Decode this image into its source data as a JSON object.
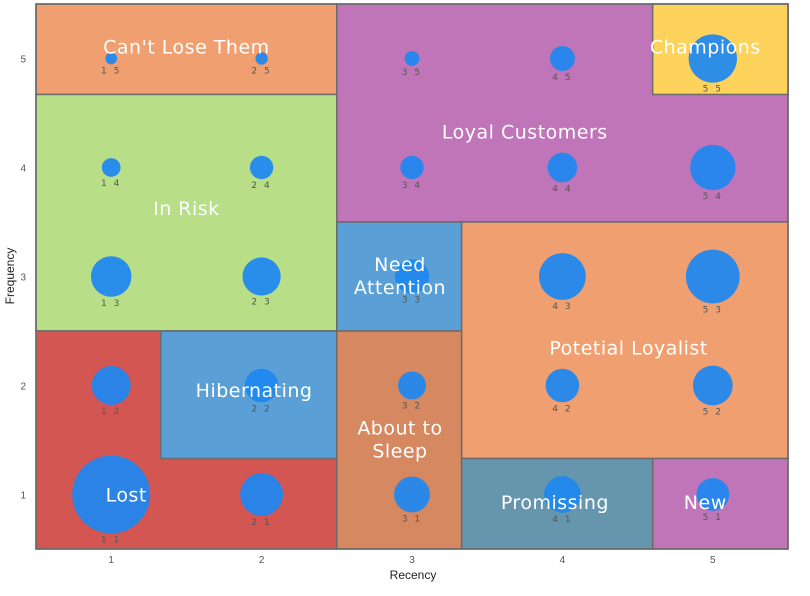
{
  "chart_data": {
    "type": "scatter",
    "title": "",
    "xlabel": "Recency",
    "ylabel": "Frequency",
    "xlim": [
      0.5,
      5.5
    ],
    "ylim": [
      0.5,
      5.5
    ],
    "x_ticks": [
      "1",
      "2",
      "3",
      "4",
      "5"
    ],
    "y_ticks": [
      "1",
      "2",
      "3",
      "4",
      "5"
    ],
    "grid": false,
    "bubble_color": "#1e88f0",
    "segments": [
      {
        "name": "Can't Lose Them",
        "x_range": [
          0.5,
          2.5
        ],
        "y_range": [
          4.67,
          5.5
        ],
        "color": "#f0a070",
        "label_at": [
          1.5,
          5.1
        ],
        "lines": [
          "Can't Lose Them"
        ]
      },
      {
        "name": "Loyal Customers",
        "x_range": [
          2.5,
          5.5
        ],
        "y_range": [
          3.5,
          5.5
        ],
        "color": "#c075b8",
        "label_at": [
          3.75,
          4.32
        ],
        "lines": [
          "Loyal Customers"
        ]
      },
      {
        "name": "Champions",
        "x_range": [
          4.6,
          5.5
        ],
        "y_range": [
          4.67,
          5.5
        ],
        "color": "#fdd35c",
        "label_at": [
          4.95,
          5.1
        ],
        "lines": [
          "Champions"
        ]
      },
      {
        "name": "In Risk",
        "x_range": [
          0.5,
          2.5
        ],
        "y_range": [
          2.5,
          4.67
        ],
        "color": "#b8df88",
        "label_at": [
          1.5,
          3.62
        ],
        "lines": [
          "In Risk"
        ]
      },
      {
        "name": "Need Attention",
        "x_range": [
          2.5,
          3.33
        ],
        "y_range": [
          2.5,
          3.5
        ],
        "color": "#5aa0d6",
        "label_at": [
          2.92,
          3.0
        ],
        "lines": [
          "Need",
          "Attention"
        ]
      },
      {
        "name": "Potetial Loyalist",
        "x_range": [
          3.33,
          5.5
        ],
        "y_range": [
          1.33,
          3.5
        ],
        "color": "#f0a070",
        "label_at": [
          4.44,
          2.34
        ],
        "lines": [
          "Potetial Loyalist"
        ]
      },
      {
        "name": "Lost",
        "x_range": [
          0.5,
          2.5
        ],
        "y_range": [
          0.5,
          2.5
        ],
        "color": "#d45652",
        "label_at": [
          1.1,
          0.99
        ],
        "lines": [
          "Lost"
        ]
      },
      {
        "name": "Hibernating",
        "x_range": [
          1.33,
          2.5
        ],
        "y_range": [
          1.33,
          2.5
        ],
        "color": "#5aa0d6",
        "label_at": [
          1.95,
          1.95
        ],
        "lines": [
          "Hibernating"
        ]
      },
      {
        "name": "About to Sleep",
        "x_range": [
          2.5,
          3.33
        ],
        "y_range": [
          0.5,
          2.5
        ],
        "color": "#d68860",
        "label_at": [
          2.92,
          1.5
        ],
        "lines": [
          "About to",
          "Sleep"
        ]
      },
      {
        "name": "Promissing",
        "x_range": [
          3.33,
          4.6
        ],
        "y_range": [
          0.5,
          1.33
        ],
        "color": "#6596ae",
        "label_at": [
          3.95,
          0.92
        ],
        "lines": [
          "Promissing"
        ]
      },
      {
        "name": "New",
        "x_range": [
          4.6,
          5.5
        ],
        "y_range": [
          0.5,
          1.33
        ],
        "color": "#c075b8",
        "label_at": [
          4.95,
          0.92
        ],
        "lines": [
          "New"
        ]
      }
    ],
    "points": [
      {
        "x": 1,
        "y": 1,
        "size": 10,
        "label": "1 1"
      },
      {
        "x": 1,
        "y": 2,
        "size": 5,
        "label": "1 2"
      },
      {
        "x": 1,
        "y": 3,
        "size": 5.2,
        "label": "1 3"
      },
      {
        "x": 1,
        "y": 4,
        "size": 2.4,
        "label": "1 4"
      },
      {
        "x": 1,
        "y": 5,
        "size": 1.5,
        "label": "1 5"
      },
      {
        "x": 2,
        "y": 1,
        "size": 5.5,
        "label": "2 1"
      },
      {
        "x": 2,
        "y": 2,
        "size": 4.3,
        "label": "2 2"
      },
      {
        "x": 2,
        "y": 3,
        "size": 4.9,
        "label": "2 3"
      },
      {
        "x": 2,
        "y": 4,
        "size": 3,
        "label": "2 4"
      },
      {
        "x": 2,
        "y": 5,
        "size": 1.6,
        "label": "2 5"
      },
      {
        "x": 3,
        "y": 1,
        "size": 4.6,
        "label": "3 1"
      },
      {
        "x": 3,
        "y": 2,
        "size": 3.6,
        "label": "3 2"
      },
      {
        "x": 3,
        "y": 3,
        "size": 4.4,
        "label": "3 3"
      },
      {
        "x": 3,
        "y": 4,
        "size": 3,
        "label": "3 4"
      },
      {
        "x": 3,
        "y": 5,
        "size": 1.9,
        "label": "3 5"
      },
      {
        "x": 4,
        "y": 1,
        "size": 4.7,
        "label": "4 1"
      },
      {
        "x": 4,
        "y": 2,
        "size": 4.3,
        "label": "4 2"
      },
      {
        "x": 4,
        "y": 3,
        "size": 6,
        "label": "4 3"
      },
      {
        "x": 4,
        "y": 4,
        "size": 3.8,
        "label": "4 4"
      },
      {
        "x": 4,
        "y": 5,
        "size": 3.2,
        "label": "4 5"
      },
      {
        "x": 5,
        "y": 1,
        "size": 4.2,
        "label": "5 1"
      },
      {
        "x": 5,
        "y": 2,
        "size": 5.1,
        "label": "5 2"
      },
      {
        "x": 5,
        "y": 3,
        "size": 6.9,
        "label": "5 3"
      },
      {
        "x": 5,
        "y": 4,
        "size": 5.8,
        "label": "5 4"
      },
      {
        "x": 5,
        "y": 5,
        "size": 6.2,
        "label": "5 5"
      }
    ]
  }
}
